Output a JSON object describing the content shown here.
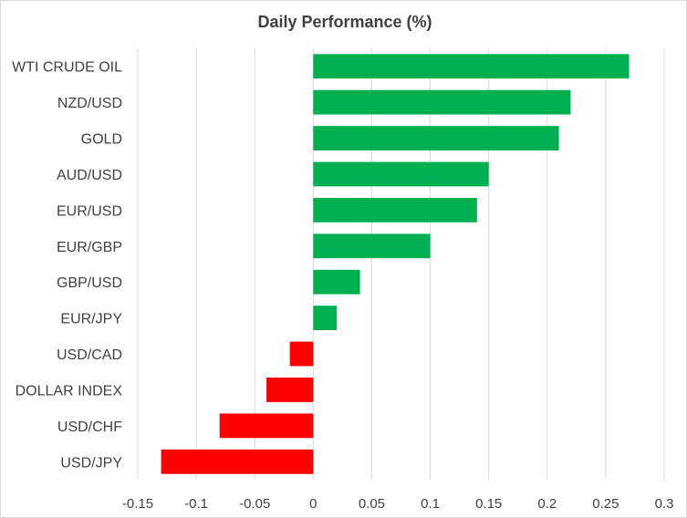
{
  "chart_data": {
    "type": "bar",
    "orientation": "horizontal",
    "title": "Daily Performance  (%)",
    "xlabel": "",
    "ylabel": "",
    "categories": [
      "WTI CRUDE OIL",
      "NZD/USD",
      "GOLD",
      "AUD/USD",
      "EUR/USD",
      "EUR/GBP",
      "GBP/USD",
      "EUR/JPY",
      "USD/CAD",
      "DOLLAR INDEX",
      "USD/CHF",
      "USD/JPY"
    ],
    "values": [
      0.27,
      0.22,
      0.21,
      0.15,
      0.14,
      0.1,
      0.04,
      0.02,
      -0.02,
      -0.04,
      -0.08,
      -0.13
    ],
    "xlim": [
      -0.15,
      0.3
    ],
    "xticks": [
      "-0.15",
      "-0.1",
      "-0.05",
      "0",
      "0.05",
      "0.1",
      "0.15",
      "0.2",
      "0.25",
      "0.3"
    ],
    "grid": true,
    "legend": "none",
    "colors": {
      "positive": "#00b050",
      "negative": "#ff0000"
    }
  }
}
